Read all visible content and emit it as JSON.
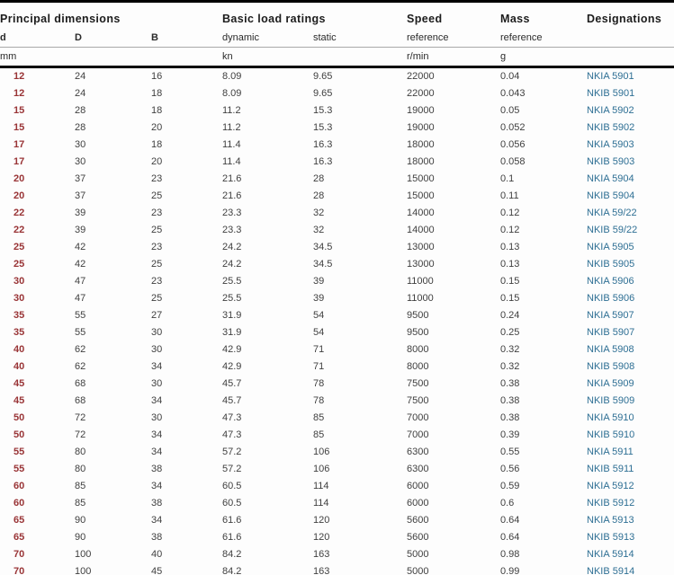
{
  "table": {
    "column_groups": [
      {
        "label": "Principal dimensions",
        "span": 3
      },
      {
        "label": "Basic load ratings",
        "span": 2
      },
      {
        "label": "Speed",
        "span": 1
      },
      {
        "label": "Mass",
        "span": 1
      },
      {
        "label": "Designations",
        "span": 1
      }
    ],
    "sub_headers": [
      "d",
      "D",
      "B",
      "dynamic",
      "static",
      "reference",
      "reference",
      ""
    ],
    "units": [
      "mm",
      "",
      "",
      "kn",
      "",
      "r/min",
      "g",
      ""
    ],
    "column_keys": [
      "d",
      "D",
      "B",
      "dynamic",
      "static",
      "speed",
      "mass",
      "designation"
    ],
    "rows": [
      [
        "12",
        "24",
        "16",
        "8.09",
        "9.65",
        "22000",
        "0.04",
        "NKIA 5901"
      ],
      [
        "12",
        "24",
        "18",
        "8.09",
        "9.65",
        "22000",
        "0.043",
        "NKIB 5901"
      ],
      [
        "15",
        "28",
        "18",
        "11.2",
        "15.3",
        "19000",
        "0.05",
        "NKIA 5902"
      ],
      [
        "15",
        "28",
        "20",
        "11.2",
        "15.3",
        "19000",
        "0.052",
        "NKIB 5902"
      ],
      [
        "17",
        "30",
        "18",
        "11.4",
        "16.3",
        "18000",
        "0.056",
        "NKIA 5903"
      ],
      [
        "17",
        "30",
        "20",
        "11.4",
        "16.3",
        "18000",
        "0.058",
        "NKIB 5903"
      ],
      [
        "20",
        "37",
        "23",
        "21.6",
        "28",
        "15000",
        "0.1",
        "NKIA 5904"
      ],
      [
        "20",
        "37",
        "25",
        "21.6",
        "28",
        "15000",
        "0.11",
        "NKIB 5904"
      ],
      [
        "22",
        "39",
        "23",
        "23.3",
        "32",
        "14000",
        "0.12",
        "NKIA 59/22"
      ],
      [
        "22",
        "39",
        "25",
        "23.3",
        "32",
        "14000",
        "0.12",
        "NKIB 59/22"
      ],
      [
        "25",
        "42",
        "23",
        "24.2",
        "34.5",
        "13000",
        "0.13",
        "NKIA 5905"
      ],
      [
        "25",
        "42",
        "25",
        "24.2",
        "34.5",
        "13000",
        "0.13",
        "NKIB 5905"
      ],
      [
        "30",
        "47",
        "23",
        "25.5",
        "39",
        "11000",
        "0.15",
        "NKIA 5906"
      ],
      [
        "30",
        "47",
        "25",
        "25.5",
        "39",
        "11000",
        "0.15",
        "NKIB 5906"
      ],
      [
        "35",
        "55",
        "27",
        "31.9",
        "54",
        "9500",
        "0.24",
        "NKIA 5907"
      ],
      [
        "35",
        "55",
        "30",
        "31.9",
        "54",
        "9500",
        "0.25",
        "NKIB 5907"
      ],
      [
        "40",
        "62",
        "30",
        "42.9",
        "71",
        "8000",
        "0.32",
        "NKIA 5908"
      ],
      [
        "40",
        "62",
        "34",
        "42.9",
        "71",
        "8000",
        "0.32",
        "NKIB 5908"
      ],
      [
        "45",
        "68",
        "30",
        "45.7",
        "78",
        "7500",
        "0.38",
        "NKIA 5909"
      ],
      [
        "45",
        "68",
        "34",
        "45.7",
        "78",
        "7500",
        "0.38",
        "NKIB 5909"
      ],
      [
        "50",
        "72",
        "30",
        "47.3",
        "85",
        "7000",
        "0.38",
        "NKIA 5910"
      ],
      [
        "50",
        "72",
        "34",
        "47.3",
        "85",
        "7000",
        "0.39",
        "NKIB 5910"
      ],
      [
        "55",
        "80",
        "34",
        "57.2",
        "106",
        "6300",
        "0.55",
        "NKIA 5911"
      ],
      [
        "55",
        "80",
        "38",
        "57.2",
        "106",
        "6300",
        "0.56",
        "NKIB 5911"
      ],
      [
        "60",
        "85",
        "34",
        "60.5",
        "114",
        "6000",
        "0.59",
        "NKIA 5912"
      ],
      [
        "60",
        "85",
        "38",
        "60.5",
        "114",
        "6000",
        "0.6",
        "NKIB 5912"
      ],
      [
        "65",
        "90",
        "34",
        "61.6",
        "120",
        "5600",
        "0.64",
        "NKIA 5913"
      ],
      [
        "65",
        "90",
        "38",
        "61.6",
        "120",
        "5600",
        "0.64",
        "NKIB 5913"
      ],
      [
        "70",
        "100",
        "40",
        "84.2",
        "163",
        "5000",
        "0.98",
        "NKIA 5914"
      ],
      [
        "70",
        "100",
        "45",
        "84.2",
        "163",
        "5000",
        "0.99",
        "NKIB 5914"
      ]
    ]
  },
  "colors": {
    "d_column_accent": "#993436",
    "designation_link": "#2e6f94",
    "rule_thick": "#000000",
    "rule_thin": "#a8a8a8",
    "body_text": "#3f3f3f",
    "header_text": "#1c1c1c"
  }
}
